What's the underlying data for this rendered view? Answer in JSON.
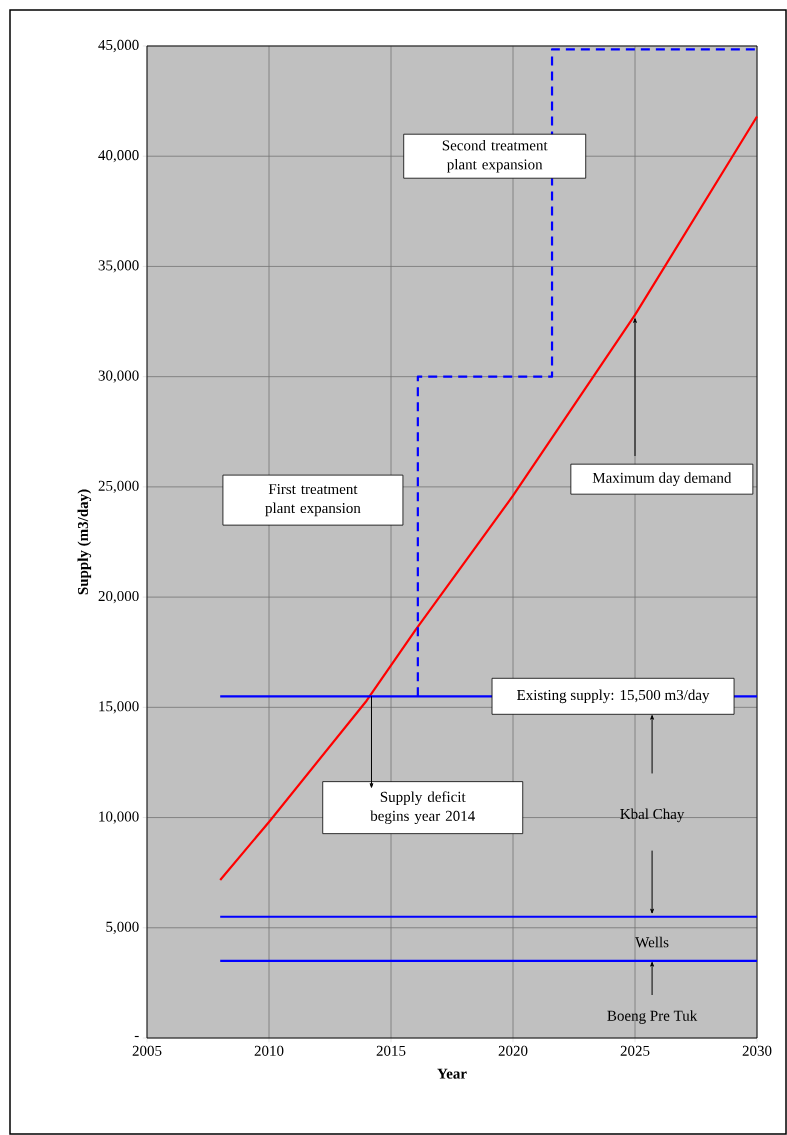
{
  "chart_data": {
    "type": "line",
    "xlabel": "Year",
    "ylabel": "Supply (m3/day)",
    "xlim": [
      2005,
      2030
    ],
    "xticks": [
      2005,
      2010,
      2015,
      2020,
      2025,
      2030
    ],
    "ylim": [
      0,
      45000
    ],
    "yticks": [
      {
        "value": 0,
        "label": "-"
      },
      {
        "value": 5000,
        "label": "5,000"
      },
      {
        "value": 10000,
        "label": "10,000"
      },
      {
        "value": 15000,
        "label": "15,000"
      },
      {
        "value": 20000,
        "label": "20,000"
      },
      {
        "value": 25000,
        "label": "25,000"
      },
      {
        "value": 30000,
        "label": "30,000"
      },
      {
        "value": 35000,
        "label": "35,000"
      },
      {
        "value": 40000,
        "label": "40,000"
      },
      {
        "value": 45000,
        "label": "45,000"
      }
    ],
    "grid": true,
    "series": [
      {
        "color": "#ff0000",
        "x": [
          2008,
          2010,
          2014,
          2016,
          2020,
          2025,
          2030
        ],
        "values": [
          7170,
          9800,
          15300,
          18500,
          24600,
          32800,
          41800
        ]
      },
      {
        "color": "#0000ff",
        "line_style": "dashed",
        "x": [
          2016.1,
          2016.1,
          2021.6,
          2021.6,
          2030
        ],
        "values": [
          15500,
          30000,
          30000,
          44850,
          44850
        ]
      },
      {
        "color": "#0000ff",
        "x": [
          2008,
          2030
        ],
        "values": [
          15500,
          15500
        ]
      },
      {
        "color": "#0000ff",
        "x": [
          2008,
          2030
        ],
        "values": [
          5500,
          5500
        ]
      },
      {
        "color": "#0000ff",
        "x": [
          2008,
          2030
        ],
        "values": [
          3500,
          3500
        ]
      }
    ],
    "annotations": [
      "Second treatment plant expansion",
      "First treatment plant expansion",
      {
        "text": "Maximum day demand",
        "x": 2025,
        "y": 32700
      },
      "Existing supply: 15,500 m3/day",
      {
        "text": "Supply deficit begins year 2014",
        "x": 2014.2,
        "y": 15500
      },
      "Kbal Chay",
      "Wells",
      "Boeng Pre Tuk"
    ]
  }
}
